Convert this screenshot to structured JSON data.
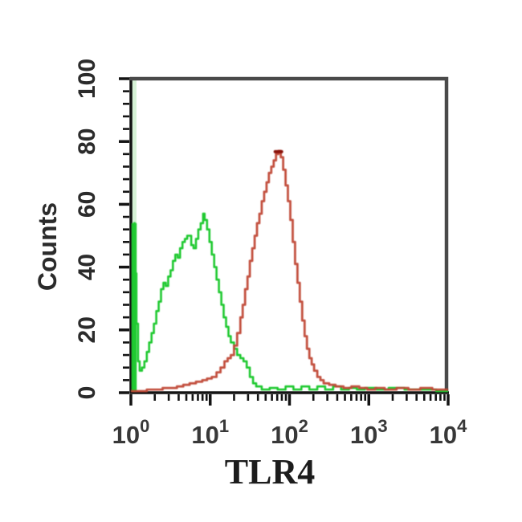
{
  "chart_data": {
    "type": "line",
    "subtype": "flow-cytometry-histogram-overlay",
    "title": "",
    "xlabel": "TLR4",
    "ylabel": "Counts",
    "x_scale": "log10",
    "xlim": [
      1,
      10000
    ],
    "ylim": [
      0,
      100
    ],
    "x_tick_base": "10",
    "x_tick_exponents": [
      "0",
      "1",
      "2",
      "3",
      "4"
    ],
    "y_tick_labels": [
      "0",
      "20",
      "40",
      "60",
      "80",
      "100"
    ],
    "y_minor_step": 4,
    "grid": "off",
    "legend": "none",
    "frame_color": "#4a4a4a",
    "axis_color": "#141414",
    "series": [
      {
        "name": "green-control-histogram",
        "color": "#1fc930",
        "pale_edge_color": "#c9eec9",
        "axis_spike": {
          "x_log10": 0.03,
          "counts": 54
        },
        "points": [
          [
            0.03,
            54
          ],
          [
            0.05,
            38
          ],
          [
            0.07,
            22
          ],
          [
            0.09,
            10
          ],
          [
            0.11,
            7
          ],
          [
            0.14,
            8
          ],
          [
            0.17,
            10
          ],
          [
            0.2,
            13
          ],
          [
            0.23,
            16
          ],
          [
            0.26,
            19
          ],
          [
            0.29,
            22
          ],
          [
            0.32,
            26
          ],
          [
            0.35,
            29
          ],
          [
            0.38,
            33
          ],
          [
            0.41,
            35
          ],
          [
            0.44,
            34
          ],
          [
            0.47,
            37
          ],
          [
            0.5,
            39
          ],
          [
            0.53,
            42
          ],
          [
            0.56,
            44
          ],
          [
            0.59,
            43
          ],
          [
            0.62,
            46
          ],
          [
            0.65,
            48
          ],
          [
            0.68,
            49
          ],
          [
            0.71,
            50
          ],
          [
            0.74,
            50
          ],
          [
            0.76,
            47
          ],
          [
            0.79,
            46
          ],
          [
            0.82,
            49
          ],
          [
            0.85,
            52
          ],
          [
            0.88,
            54
          ],
          [
            0.91,
            57
          ],
          [
            0.93,
            55
          ],
          [
            0.96,
            52
          ],
          [
            0.99,
            48
          ],
          [
            1.02,
            44
          ],
          [
            1.05,
            40
          ],
          [
            1.08,
            36
          ],
          [
            1.11,
            32
          ],
          [
            1.14,
            28
          ],
          [
            1.17,
            24
          ],
          [
            1.2,
            21
          ],
          [
            1.23,
            18
          ],
          [
            1.26,
            16
          ],
          [
            1.3,
            14
          ],
          [
            1.34,
            12
          ],
          [
            1.38,
            11
          ],
          [
            1.42,
            10
          ],
          [
            1.46,
            8
          ],
          [
            1.5,
            5
          ],
          [
            1.54,
            3
          ],
          [
            1.58,
            2
          ],
          [
            1.65,
            1
          ],
          [
            1.75,
            1.5
          ],
          [
            1.85,
            1
          ],
          [
            1.95,
            2
          ],
          [
            2.05,
            1
          ],
          [
            2.15,
            2
          ],
          [
            2.25,
            1
          ],
          [
            2.35,
            2
          ],
          [
            2.45,
            1
          ],
          [
            2.55,
            2
          ],
          [
            2.65,
            1
          ],
          [
            2.75,
            1.5
          ],
          [
            2.85,
            1
          ],
          [
            2.95,
            1.5
          ],
          [
            3.1,
            1
          ],
          [
            3.25,
            1.5
          ],
          [
            3.45,
            1
          ],
          [
            3.65,
            1
          ],
          [
            3.85,
            0.5
          ],
          [
            4.0,
            0.5
          ]
        ]
      },
      {
        "name": "red-tlr4-histogram",
        "color": "#c04836",
        "peak_tip_color": "#8a130b",
        "peak": {
          "x_log10": 1.86,
          "counts": 77
        },
        "points": [
          [
            0.0,
            0.5
          ],
          [
            0.1,
            0.5
          ],
          [
            0.2,
            1
          ],
          [
            0.3,
            1
          ],
          [
            0.4,
            1.5
          ],
          [
            0.5,
            1.5
          ],
          [
            0.58,
            2
          ],
          [
            0.66,
            2.5
          ],
          [
            0.74,
            3
          ],
          [
            0.82,
            3.5
          ],
          [
            0.9,
            4
          ],
          [
            0.96,
            4.5
          ],
          [
            1.02,
            5
          ],
          [
            1.08,
            6.5
          ],
          [
            1.13,
            8
          ],
          [
            1.18,
            10
          ],
          [
            1.22,
            11
          ],
          [
            1.26,
            12
          ],
          [
            1.3,
            15
          ],
          [
            1.34,
            19
          ],
          [
            1.38,
            24
          ],
          [
            1.41,
            28
          ],
          [
            1.44,
            33
          ],
          [
            1.47,
            37
          ],
          [
            1.5,
            42
          ],
          [
            1.53,
            46
          ],
          [
            1.56,
            50
          ],
          [
            1.59,
            54
          ],
          [
            1.62,
            57
          ],
          [
            1.65,
            61
          ],
          [
            1.68,
            64
          ],
          [
            1.71,
            67
          ],
          [
            1.74,
            70
          ],
          [
            1.77,
            72
          ],
          [
            1.8,
            74
          ],
          [
            1.83,
            76
          ],
          [
            1.86,
            77
          ],
          [
            1.89,
            75
          ],
          [
            1.92,
            71
          ],
          [
            1.95,
            66
          ],
          [
            1.98,
            61
          ],
          [
            2.01,
            55
          ],
          [
            2.04,
            48
          ],
          [
            2.07,
            41
          ],
          [
            2.1,
            35
          ],
          [
            2.13,
            29
          ],
          [
            2.16,
            23
          ],
          [
            2.19,
            18
          ],
          [
            2.22,
            14
          ],
          [
            2.25,
            11
          ],
          [
            2.28,
            9
          ],
          [
            2.31,
            7
          ],
          [
            2.35,
            5
          ],
          [
            2.39,
            4
          ],
          [
            2.43,
            3
          ],
          [
            2.5,
            2.5
          ],
          [
            2.58,
            2
          ],
          [
            2.68,
            1.5
          ],
          [
            2.78,
            2
          ],
          [
            2.88,
            1.5
          ],
          [
            2.98,
            1
          ],
          [
            3.08,
            1.5
          ],
          [
            3.2,
            1
          ],
          [
            3.35,
            1.5
          ],
          [
            3.5,
            1
          ],
          [
            3.65,
            1.5
          ],
          [
            3.8,
            1
          ],
          [
            4.0,
            1
          ]
        ]
      }
    ]
  }
}
